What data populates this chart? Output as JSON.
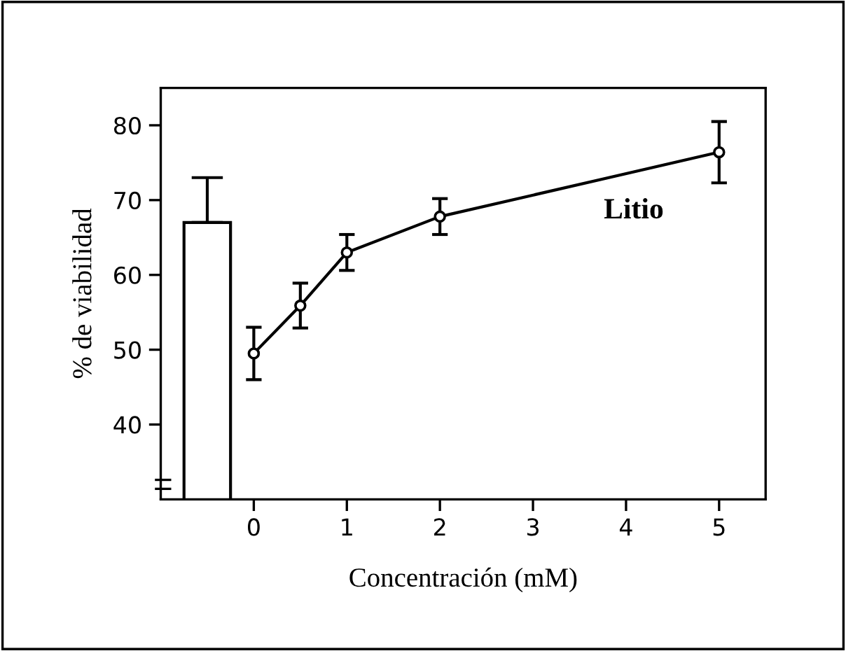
{
  "chart_data": {
    "type": "line",
    "xlabel": "Concentración (mM)",
    "ylabel": "% de viabilidad",
    "xlim": [
      -1,
      5.5
    ],
    "ylim": [
      30,
      85
    ],
    "xticks": [
      0,
      1,
      2,
      3,
      4,
      5
    ],
    "yticks": [
      40,
      50,
      60,
      70,
      80
    ],
    "grid": false,
    "legend": false,
    "marker": "circle",
    "line_style": "solid",
    "series": [
      {
        "type": "bar",
        "x": [
          -0.5
        ],
        "values": [
          67
        ],
        "errors": [
          6
        ],
        "color": "#ffffff"
      },
      {
        "x": [
          0,
          0.5,
          1,
          2,
          5
        ],
        "values": [
          49.5,
          55.9,
          63,
          67.8,
          76.4
        ],
        "errors": [
          3.5,
          3,
          2.4,
          2.4,
          4.1
        ],
        "color": "#000000"
      }
    ],
    "annotations": [
      "Litio"
    ]
  }
}
